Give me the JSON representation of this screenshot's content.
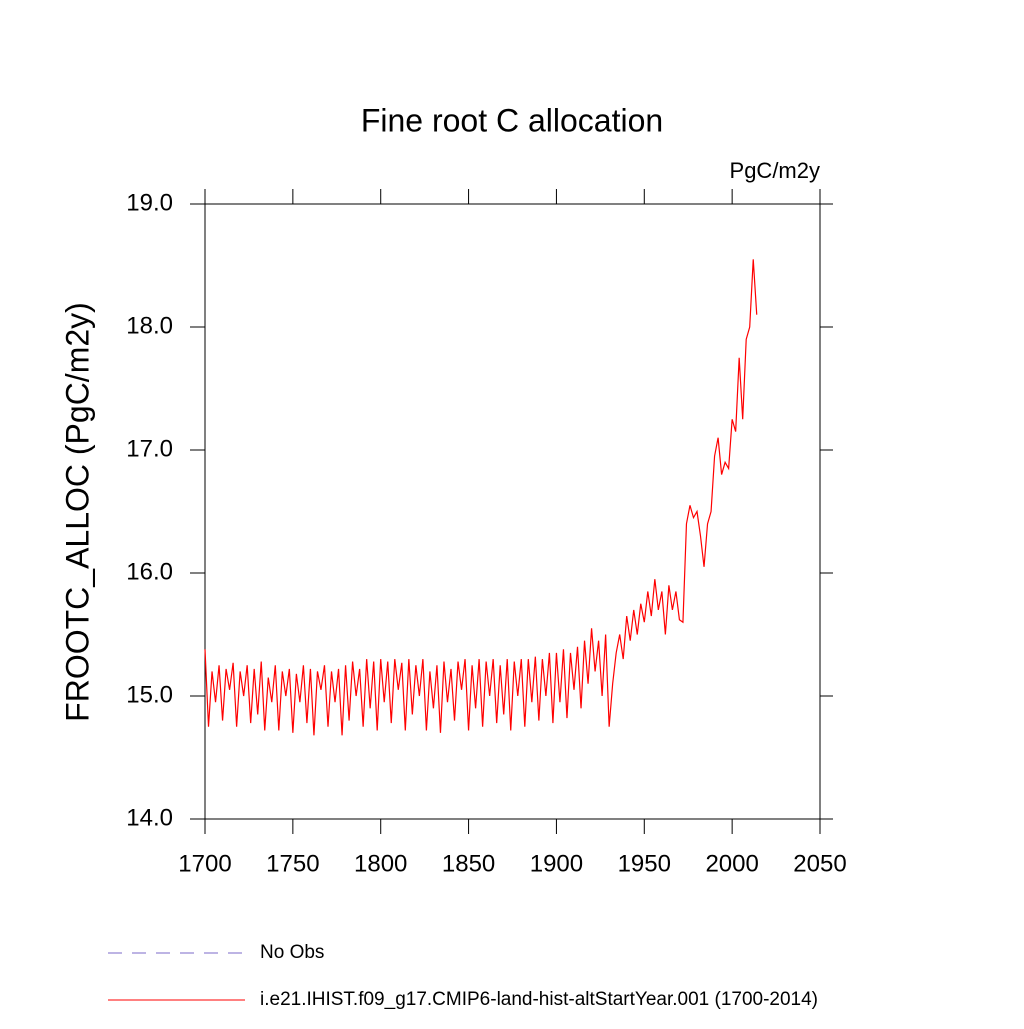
{
  "chart_data": {
    "type": "line",
    "title": "Fine root C allocation",
    "units": "PgC/m2y",
    "y_label": "FROOTC_ALLOC  (PgC/m2y)",
    "xlim": [
      1700,
      2050
    ],
    "xticks": [
      1700,
      1750,
      1800,
      1850,
      1900,
      1950,
      2000,
      2050
    ],
    "ylim": [
      14.0,
      19.0
    ],
    "yticks": [
      {
        "value": 14,
        "label": "14.0"
      },
      {
        "value": 15,
        "label": "15.0"
      },
      {
        "value": 16,
        "label": "16.0"
      },
      {
        "value": 17,
        "label": "17.0"
      },
      {
        "value": 18,
        "label": "18.0"
      },
      {
        "value": 19,
        "label": "19.0"
      }
    ],
    "series": [
      {
        "name": "No Obs",
        "color": "#7b68c8",
        "dashed": true,
        "x": [],
        "values": []
      },
      {
        "name": "i.e21.IHIST.f09_g17.CMIP6-land-hist-altStartYear.001 (1700-2014)",
        "color": "#ff0000",
        "dashed": false,
        "x": [
          1700,
          1702,
          1704,
          1706,
          1708,
          1710,
          1712,
          1714,
          1716,
          1718,
          1720,
          1722,
          1724,
          1726,
          1728,
          1730,
          1732,
          1734,
          1736,
          1738,
          1740,
          1742,
          1744,
          1746,
          1748,
          1750,
          1752,
          1754,
          1756,
          1758,
          1760,
          1762,
          1764,
          1766,
          1768,
          1770,
          1772,
          1774,
          1776,
          1778,
          1780,
          1782,
          1784,
          1786,
          1788,
          1790,
          1792,
          1794,
          1796,
          1798,
          1800,
          1802,
          1804,
          1806,
          1808,
          1810,
          1812,
          1814,
          1816,
          1818,
          1820,
          1822,
          1824,
          1826,
          1828,
          1830,
          1832,
          1834,
          1836,
          1838,
          1840,
          1842,
          1844,
          1846,
          1848,
          1850,
          1852,
          1854,
          1856,
          1858,
          1860,
          1862,
          1864,
          1866,
          1868,
          1870,
          1872,
          1874,
          1876,
          1878,
          1880,
          1882,
          1884,
          1886,
          1888,
          1890,
          1892,
          1894,
          1896,
          1898,
          1900,
          1902,
          1904,
          1906,
          1908,
          1910,
          1912,
          1914,
          1916,
          1918,
          1920,
          1922,
          1924,
          1926,
          1928,
          1930,
          1932,
          1934,
          1936,
          1938,
          1940,
          1942,
          1944,
          1946,
          1948,
          1950,
          1952,
          1954,
          1956,
          1958,
          1960,
          1962,
          1964,
          1966,
          1968,
          1970,
          1972,
          1974,
          1976,
          1978,
          1980,
          1982,
          1984,
          1986,
          1988,
          1990,
          1992,
          1994,
          1996,
          1998,
          2000,
          2002,
          2004,
          2006,
          2008,
          2010,
          2012,
          2014
        ],
        "values": [
          15.38,
          14.75,
          15.2,
          14.95,
          15.25,
          14.8,
          15.22,
          15.05,
          15.27,
          14.75,
          15.2,
          15.0,
          15.25,
          14.78,
          15.22,
          14.85,
          15.28,
          14.72,
          15.15,
          14.95,
          15.25,
          14.72,
          15.2,
          15.0,
          15.22,
          14.7,
          15.18,
          14.95,
          15.25,
          14.78,
          15.22,
          14.68,
          15.2,
          15.05,
          15.25,
          14.75,
          15.2,
          14.95,
          15.22,
          14.68,
          15.25,
          14.8,
          15.28,
          15.0,
          15.22,
          14.75,
          15.3,
          14.9,
          15.28,
          14.72,
          15.3,
          14.95,
          15.28,
          14.78,
          15.3,
          15.05,
          15.27,
          14.72,
          15.3,
          14.85,
          15.25,
          15.0,
          15.3,
          14.72,
          15.2,
          14.9,
          15.25,
          14.7,
          15.28,
          14.95,
          15.22,
          14.8,
          15.28,
          15.05,
          15.3,
          14.72,
          15.25,
          14.9,
          15.3,
          14.75,
          15.28,
          15.0,
          15.3,
          14.78,
          15.25,
          14.85,
          15.3,
          14.72,
          15.28,
          15.0,
          15.3,
          14.75,
          15.3,
          14.95,
          15.32,
          14.8,
          15.3,
          15.0,
          15.35,
          14.78,
          15.35,
          14.95,
          15.38,
          14.82,
          15.35,
          15.05,
          15.4,
          14.9,
          15.45,
          15.1,
          15.55,
          15.2,
          15.45,
          15.0,
          15.5,
          14.75,
          15.1,
          15.35,
          15.5,
          15.3,
          15.65,
          15.45,
          15.7,
          15.5,
          15.75,
          15.6,
          15.85,
          15.65,
          15.95,
          15.7,
          15.85,
          15.5,
          15.9,
          15.7,
          15.85,
          15.62,
          15.6,
          16.4,
          16.55,
          16.45,
          16.5,
          16.3,
          16.05,
          16.4,
          16.5,
          16.95,
          17.1,
          16.8,
          16.9,
          16.85,
          17.25,
          17.15,
          17.75,
          17.25,
          17.9,
          18.0,
          18.55,
          18.1
        ]
      }
    ]
  }
}
